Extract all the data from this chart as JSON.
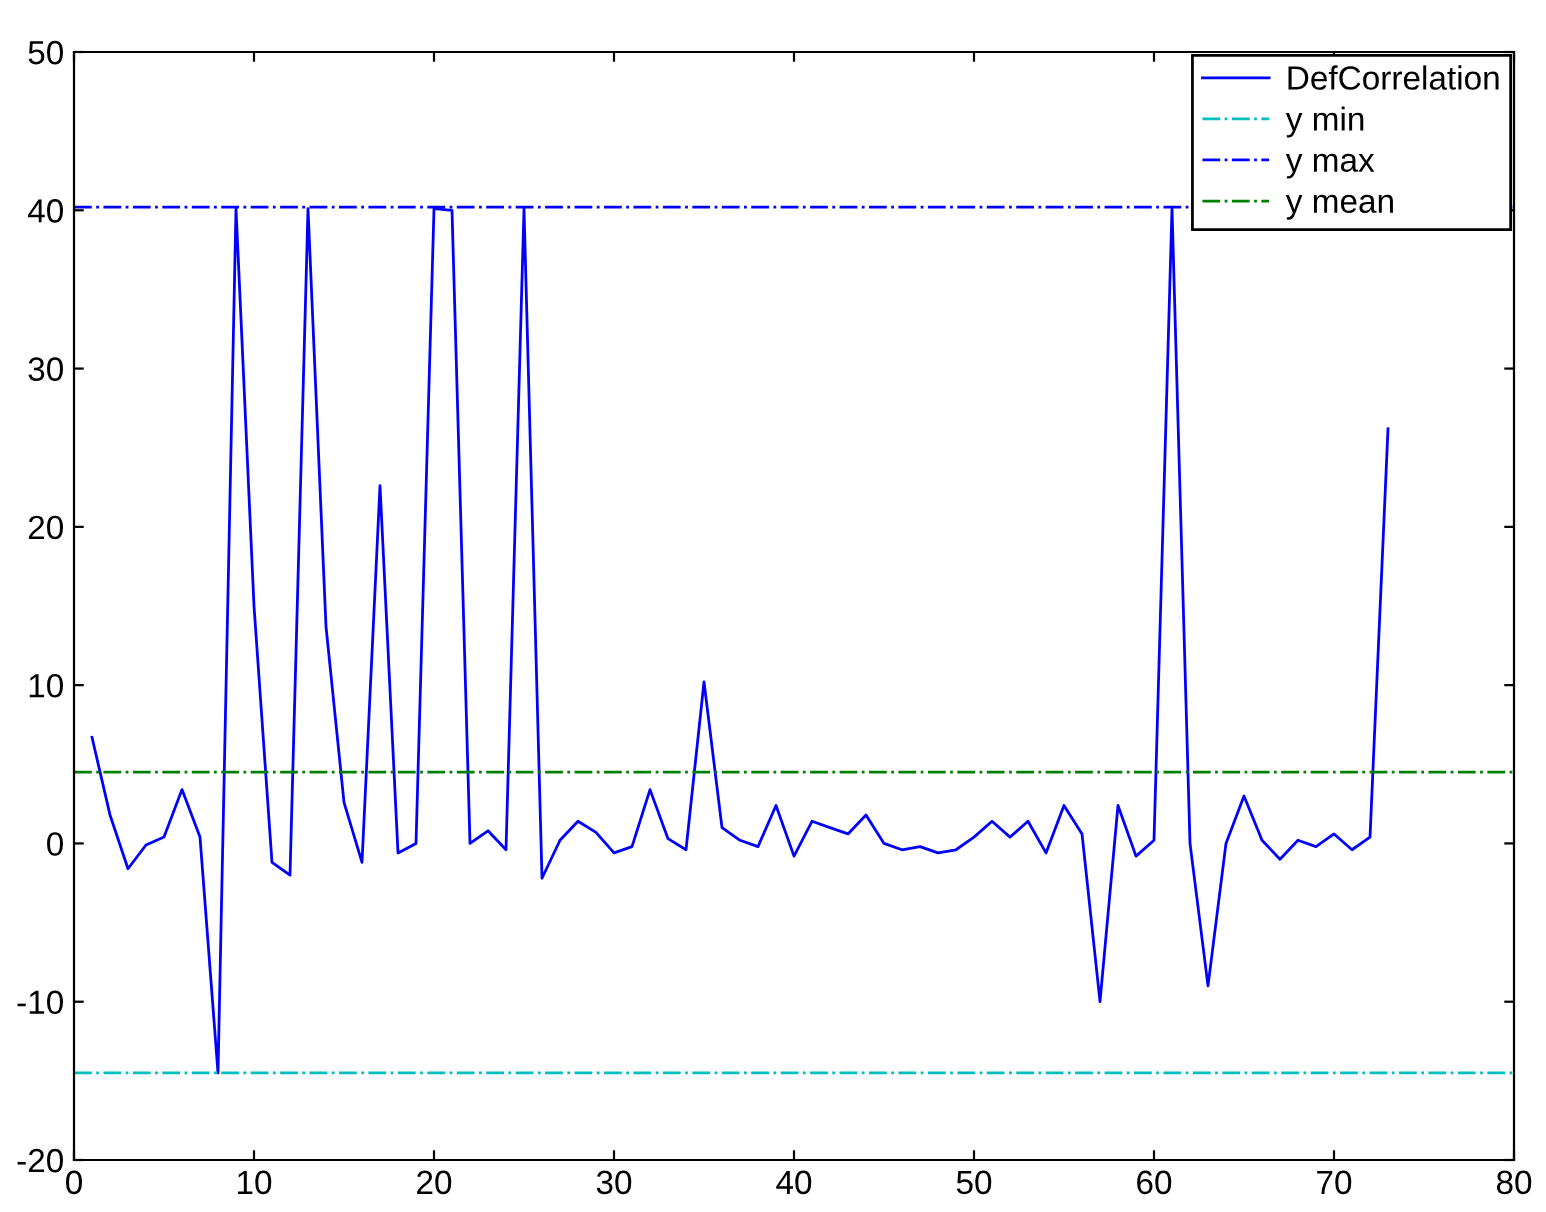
{
  "chart_data": {
    "type": "line",
    "x": [
      1,
      2,
      3,
      4,
      5,
      6,
      7,
      8,
      9,
      10,
      11,
      12,
      13,
      14,
      15,
      16,
      17,
      18,
      19,
      20,
      21,
      22,
      23,
      24,
      25,
      26,
      27,
      28,
      29,
      30,
      31,
      32,
      33,
      34,
      35,
      36,
      37,
      38,
      39,
      40,
      41,
      42,
      43,
      44,
      45,
      46,
      47,
      48,
      49,
      50,
      51,
      52,
      53,
      54,
      55,
      56,
      57,
      58,
      59,
      60,
      61,
      62,
      63,
      64,
      65,
      66,
      67,
      68,
      69,
      70,
      71,
      72,
      73
    ],
    "series": [
      {
        "name": "DefCorrelation",
        "color": "#0000ff",
        "values": [
          6.7,
          1.8,
          -1.6,
          -0.1,
          0.4,
          3.4,
          0.4,
          -14.5,
          40.1,
          15,
          -1.2,
          -2.0,
          40.1,
          13.7,
          2.6,
          -1.2,
          22.6,
          -0.6,
          0,
          40.1,
          40,
          0,
          0.8,
          -0.4,
          40.1,
          -2.2,
          0.2,
          1.4,
          0.7,
          -0.6,
          -0.2,
          3.4,
          0.3,
          -0.4,
          10.2,
          1,
          0.2,
          -0.2,
          2.4,
          -0.8,
          1.4,
          1,
          0.6,
          1.8,
          0,
          -0.4,
          -0.2,
          -0.6,
          -0.4,
          0.4,
          1.4,
          0.4,
          1.4,
          -0.6,
          2.4,
          0.6,
          -10,
          2.4,
          -0.8,
          0.2,
          40.1,
          0,
          -9,
          0,
          3,
          0.2,
          -1,
          0.2,
          -0.2,
          0.6,
          -0.4,
          0.4,
          26.2
        ]
      }
    ],
    "ref_lines": [
      {
        "axis": "y",
        "value": -14.5,
        "label": "y min",
        "color": "#00bfbf",
        "line_style": "dashdot"
      },
      {
        "axis": "y",
        "value": 40.2,
        "label": "y max",
        "color": "#0000ff",
        "line_style": "dashdot"
      },
      {
        "axis": "y",
        "value": 4.5,
        "label": "y mean",
        "color": "#008000",
        "line_style": "dashdot"
      }
    ],
    "xlim": [
      0,
      80
    ],
    "xticks": [
      0,
      10,
      20,
      30,
      40,
      50,
      60,
      70,
      80
    ],
    "ylim": [
      -20,
      50
    ],
    "yticks": [
      -20,
      -10,
      0,
      10,
      20,
      30,
      40,
      50
    ],
    "grid": false,
    "legend": "top right",
    "marker": "none",
    "line_style": "solid"
  }
}
